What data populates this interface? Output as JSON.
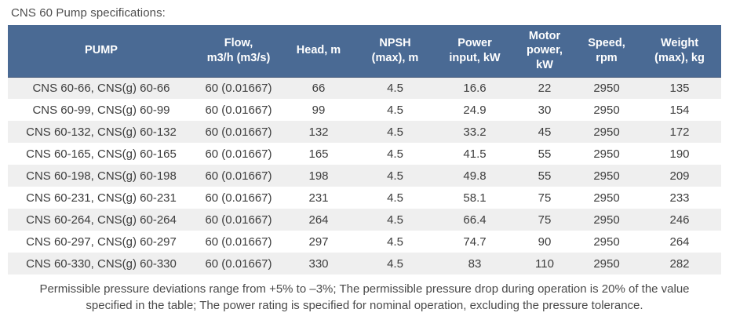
{
  "page_title": "CNS 60 Pump specifications:",
  "colors": {
    "header_background": "#4a6a94",
    "header_text": "#ffffff",
    "row_alt_background": "#efefef",
    "row_background": "#ffffff",
    "body_text": "#3d3d3d",
    "title_text": "#4d4d4d"
  },
  "table": {
    "columns": [
      "PUMP",
      "Flow,\nm3/h (m3/s)",
      "Head, m",
      "NPSH\n(max), m",
      "Power\ninput, kW",
      "Motor\npower,\nkW",
      "Speed,\nrpm",
      "Weight\n(max), kg"
    ],
    "rows": [
      [
        "CNS 60-66, CNS(g) 60-66",
        "60 (0.01667)",
        "66",
        "4.5",
        "16.6",
        "22",
        "2950",
        "135"
      ],
      [
        "CNS 60-99, CNS(g) 60-99",
        "60 (0.01667)",
        "99",
        "4.5",
        "24.9",
        "30",
        "2950",
        "154"
      ],
      [
        "CNS 60-132, CNS(g) 60-132",
        "60 (0.01667)",
        "132",
        "4.5",
        "33.2",
        "45",
        "2950",
        "172"
      ],
      [
        "CNS 60-165, CNS(g) 60-165",
        "60 (0.01667)",
        "165",
        "4.5",
        "41.5",
        "55",
        "2950",
        "190"
      ],
      [
        "CNS 60-198, CNS(g) 60-198",
        "60 (0.01667)",
        "198",
        "4.5",
        "49.8",
        "55",
        "2950",
        "209"
      ],
      [
        "CNS 60-231, CNS(g) 60-231",
        "60 (0.01667)",
        "231",
        "4.5",
        "58.1",
        "75",
        "2950",
        "233"
      ],
      [
        "CNS 60-264, CNS(g) 60-264",
        "60 (0.01667)",
        "264",
        "4.5",
        "66.4",
        "75",
        "2950",
        "246"
      ],
      [
        "CNS 60-297, CNS(g) 60-297",
        "60 (0.01667)",
        "297",
        "4.5",
        "74.7",
        "90",
        "2950",
        "264"
      ],
      [
        "CNS 60-330, CNS(g) 60-330",
        "60 (0.01667)",
        "330",
        "4.5",
        "83",
        "110",
        "2950",
        "282"
      ]
    ]
  },
  "footnote": "Permissible pressure deviations range from +5% to –3%; The permissible pressure drop during operation is 20% of the value specified in the table; The power rating is specified for nominal operation, excluding the pressure tolerance."
}
